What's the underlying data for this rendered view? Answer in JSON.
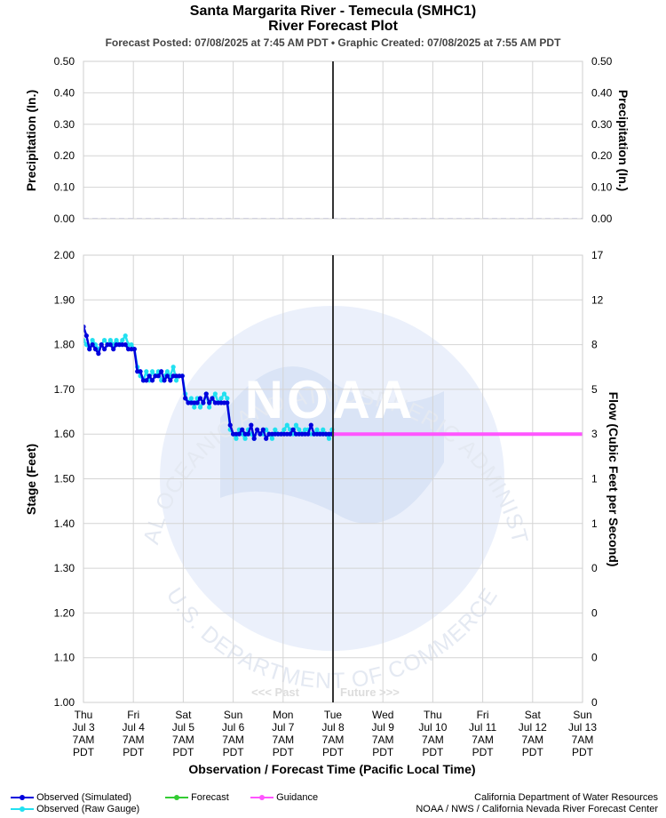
{
  "header": {
    "title": "Santa Margarita River - Temecula (SMHC1)",
    "subtitle": "River Forecast Plot",
    "posted": "Forecast Posted: 07/08/2025 at 7:45 AM PDT  •  Graphic Created: 07/08/2025 at 7:55 AM PDT"
  },
  "chart_data": [
    {
      "type": "line",
      "panel": "precipitation",
      "ylabel_left": "Precipitation (In.)",
      "ylabel_right": "Precipitation (In.)",
      "ylim": [
        0,
        0.5
      ],
      "y_ticks_left": [
        "0.50",
        "0.40",
        "0.30",
        "0.20",
        "0.10",
        "0.00"
      ],
      "y_ticks_right": [
        "0.50",
        "0.40",
        "0.30",
        "0.20",
        "0.10",
        "0.00"
      ],
      "grid": true,
      "series": [
        {
          "key": "precip",
          "color": "#b0b0e8",
          "x": [
            0,
            10
          ],
          "values": [
            0,
            0
          ]
        }
      ]
    },
    {
      "type": "line",
      "panel": "stage",
      "xlabel": "Observation / Forecast Time (Pacific Local Time)",
      "ylabel": "Stage (Feet)",
      "ylabel_right": "Flow (Cubic Feet per Second)",
      "ylim": [
        1.0,
        2.0
      ],
      "xlim": [
        0,
        10
      ],
      "x_unit": "days since Thu Jul 3 7AM PDT",
      "y_ticks_left": [
        "2.00",
        "1.90",
        "1.80",
        "1.70",
        "1.60",
        "1.50",
        "1.40",
        "1.30",
        "1.20",
        "1.10",
        "1.00"
      ],
      "y_ticks_right": [
        "17",
        "12",
        "8",
        "5",
        "3",
        "1",
        "1",
        "0",
        "0",
        "0",
        "0"
      ],
      "x_tick_labels": [
        [
          "Thu",
          "Jul 3",
          "7AM",
          "PDT"
        ],
        [
          "Fri",
          "Jul 4",
          "7AM",
          "PDT"
        ],
        [
          "Sat",
          "Jul 5",
          "7AM",
          "PDT"
        ],
        [
          "Sun",
          "Jul 6",
          "7AM",
          "PDT"
        ],
        [
          "Mon",
          "Jul 7",
          "7AM",
          "PDT"
        ],
        [
          "Tue",
          "Jul 8",
          "7AM",
          "PDT"
        ],
        [
          "Wed",
          "Jul 9",
          "7AM",
          "PDT"
        ],
        [
          "Thu",
          "Jul 10",
          "7AM",
          "PDT"
        ],
        [
          "Fri",
          "Jul 11",
          "7AM",
          "PDT"
        ],
        [
          "Sat",
          "Jul 12",
          "7AM",
          "PDT"
        ],
        [
          "Sun",
          "Jul 13",
          "7AM",
          "PDT"
        ]
      ],
      "now_x": 5,
      "past_label": "<<< Past",
      "future_label": "Future >>>",
      "grid": true,
      "series": [
        {
          "key": "raw",
          "color": "#22e0f0",
          "x": [
            0,
            0.06,
            0.12,
            0.18,
            0.24,
            0.3,
            0.36,
            0.42,
            0.48,
            0.54,
            0.6,
            0.66,
            0.72,
            0.78,
            0.84,
            0.9,
            0.96,
            1.02,
            1.08,
            1.14,
            1.2,
            1.26,
            1.32,
            1.38,
            1.44,
            1.5,
            1.56,
            1.62,
            1.68,
            1.74,
            1.8,
            1.86,
            1.92,
            1.98,
            2.04,
            2.1,
            2.16,
            2.22,
            2.28,
            2.34,
            2.4,
            2.46,
            2.52,
            2.58,
            2.64,
            2.7,
            2.76,
            2.82,
            2.88,
            2.94,
            3.0,
            3.06,
            3.12,
            3.18,
            3.24,
            3.3,
            3.36,
            3.42,
            3.48,
            3.54,
            3.6,
            3.66,
            3.72,
            3.78,
            3.84,
            3.9,
            3.96,
            4.02,
            4.08,
            4.14,
            4.2,
            4.26,
            4.32,
            4.38,
            4.44,
            4.5,
            4.56,
            4.62,
            4.68,
            4.74,
            4.8,
            4.86,
            4.92,
            4.98
          ],
          "values": [
            1.81,
            1.8,
            1.79,
            1.81,
            1.8,
            1.79,
            1.8,
            1.81,
            1.8,
            1.81,
            1.8,
            1.81,
            1.8,
            1.81,
            1.82,
            1.8,
            1.8,
            1.79,
            1.75,
            1.73,
            1.72,
            1.74,
            1.72,
            1.74,
            1.73,
            1.74,
            1.72,
            1.73,
            1.74,
            1.73,
            1.75,
            1.72,
            1.73,
            1.73,
            1.69,
            1.67,
            1.68,
            1.66,
            1.68,
            1.66,
            1.67,
            1.69,
            1.66,
            1.68,
            1.69,
            1.67,
            1.68,
            1.69,
            1.68,
            1.61,
            1.6,
            1.59,
            1.61,
            1.6,
            1.59,
            1.61,
            1.6,
            1.59,
            1.61,
            1.6,
            1.6,
            1.61,
            1.6,
            1.59,
            1.61,
            1.6,
            1.6,
            1.61,
            1.62,
            1.61,
            1.6,
            1.62,
            1.61,
            1.6,
            1.61,
            1.61,
            1.6,
            1.6,
            1.61,
            1.6,
            1.61,
            1.6,
            1.59,
            1.61
          ]
        },
        {
          "key": "simulated",
          "color": "#0000dd",
          "x": [
            0,
            0.06,
            0.12,
            0.18,
            0.24,
            0.3,
            0.36,
            0.42,
            0.48,
            0.54,
            0.6,
            0.66,
            0.72,
            0.78,
            0.84,
            0.9,
            0.96,
            1.02,
            1.08,
            1.14,
            1.2,
            1.26,
            1.32,
            1.38,
            1.44,
            1.5,
            1.56,
            1.62,
            1.68,
            1.74,
            1.8,
            1.86,
            1.92,
            1.98,
            2.04,
            2.1,
            2.16,
            2.22,
            2.28,
            2.34,
            2.4,
            2.46,
            2.52,
            2.58,
            2.64,
            2.7,
            2.76,
            2.82,
            2.88,
            2.94,
            3.0,
            3.06,
            3.12,
            3.18,
            3.24,
            3.3,
            3.36,
            3.42,
            3.48,
            3.54,
            3.6,
            3.66,
            3.72,
            3.78,
            3.84,
            3.9,
            3.96,
            4.02,
            4.08,
            4.14,
            4.2,
            4.26,
            4.32,
            4.38,
            4.44,
            4.5,
            4.56,
            4.62,
            4.68,
            4.74,
            4.8,
            4.86,
            4.92,
            4.98,
            5.0
          ],
          "values": [
            1.84,
            1.82,
            1.79,
            1.8,
            1.79,
            1.78,
            1.8,
            1.79,
            1.8,
            1.8,
            1.79,
            1.8,
            1.8,
            1.8,
            1.8,
            1.79,
            1.79,
            1.79,
            1.74,
            1.74,
            1.72,
            1.72,
            1.73,
            1.72,
            1.73,
            1.73,
            1.74,
            1.72,
            1.73,
            1.72,
            1.73,
            1.73,
            1.73,
            1.73,
            1.68,
            1.67,
            1.67,
            1.67,
            1.67,
            1.68,
            1.67,
            1.69,
            1.67,
            1.68,
            1.67,
            1.67,
            1.67,
            1.67,
            1.67,
            1.62,
            1.6,
            1.6,
            1.6,
            1.61,
            1.6,
            1.6,
            1.62,
            1.59,
            1.61,
            1.6,
            1.61,
            1.59,
            1.6,
            1.6,
            1.6,
            1.6,
            1.6,
            1.6,
            1.6,
            1.6,
            1.61,
            1.6,
            1.6,
            1.6,
            1.6,
            1.6,
            1.62,
            1.6,
            1.6,
            1.6,
            1.6,
            1.6,
            1.6,
            1.6,
            1.6
          ]
        },
        {
          "key": "guidance",
          "color": "#ff55ff",
          "x": [
            5,
            10
          ],
          "values": [
            1.6,
            1.6
          ]
        }
      ]
    }
  ],
  "watermark": {
    "arc_text": "NATIONAL OCEANIC AND ATMOSPHERIC ADMINISTRATION",
    "bottom_text": "U.S. DEPARTMENT OF COMMERCE",
    "logo_text": "NOAA"
  },
  "legend": {
    "observed_simulated": "Observed (Simulated)",
    "observed_raw": "Observed (Raw Gauge)",
    "forecast": "Forecast",
    "guidance": "Guidance",
    "forecast_color": "#33cc33"
  },
  "credits": {
    "line1": "California Department of Water Resources",
    "line2": "NOAA / NWS / California Nevada River Forecast Center"
  }
}
